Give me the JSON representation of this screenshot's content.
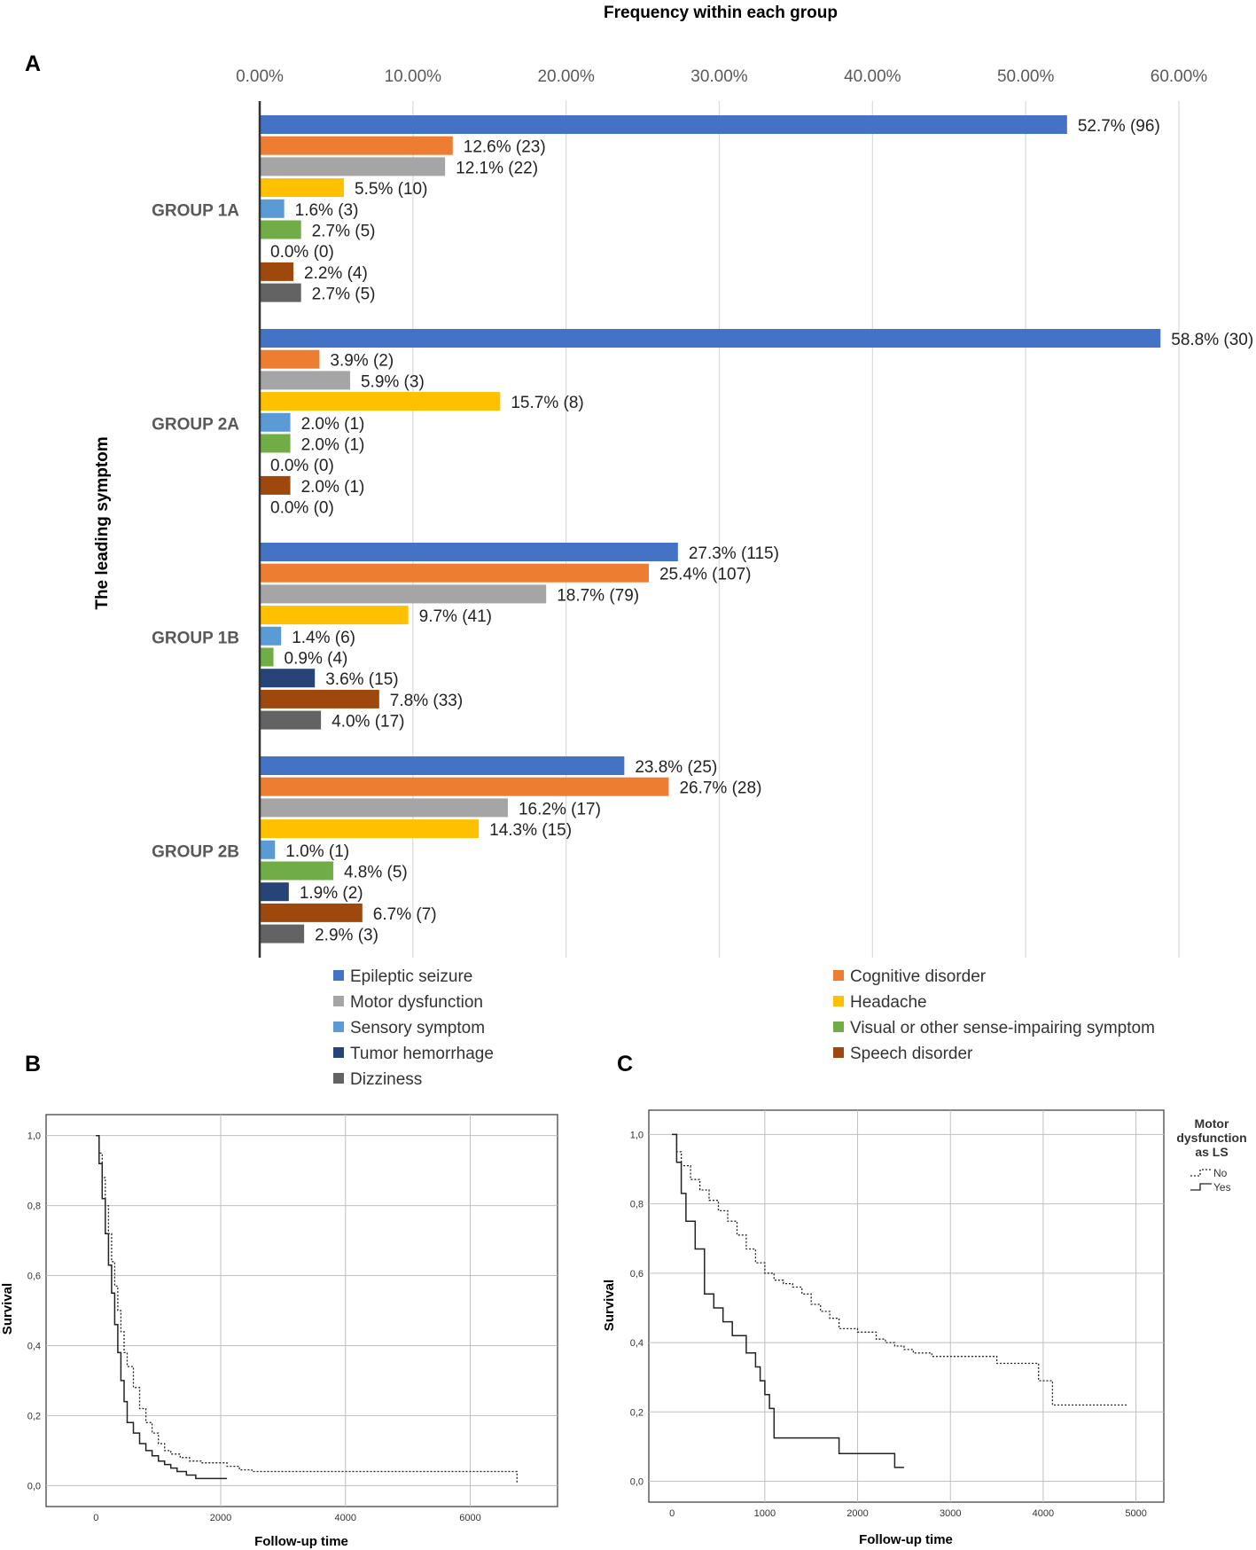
{
  "chart_data": [
    {
      "type": "bar",
      "orientation": "horizontal",
      "panel_label": "A",
      "title": "Frequency within each group",
      "ylabel": "The leading symptom",
      "xlim": [
        0,
        60
      ],
      "x_ticks": [
        "0.00%",
        "10.00%",
        "20.00%",
        "30.00%",
        "40.00%",
        "50.00%",
        "60.00%"
      ],
      "grid": true,
      "categories": [
        "GROUP 1A",
        "GROUP 2A",
        "GROUP 1B",
        "GROUP 2B"
      ],
      "series": [
        {
          "name": "Epileptic seizure",
          "color": "#4472C4",
          "values": [
            52.7,
            58.8,
            27.3,
            23.8
          ],
          "labels": [
            "52.7% (96)",
            "58.8% (30)",
            "27.3% (115)",
            "23.8% (25)"
          ]
        },
        {
          "name": "Cognitive disorder",
          "color": "#ED7D31",
          "values": [
            12.6,
            3.9,
            25.4,
            26.7
          ],
          "labels": [
            "12.6% (23)",
            "3.9% (2)",
            "25.4% (107)",
            "26.7% (28)"
          ]
        },
        {
          "name": "Motor dysfunction",
          "color": "#A5A5A5",
          "values": [
            12.1,
            5.9,
            18.7,
            16.2
          ],
          "labels": [
            "12.1% (22)",
            "5.9% (3)",
            "18.7% (79)",
            "16.2% (17)"
          ]
        },
        {
          "name": "Headache",
          "color": "#FFC000",
          "values": [
            5.5,
            15.7,
            9.7,
            14.3
          ],
          "labels": [
            "5.5% (10)",
            "15.7% (8)",
            "9.7% (41)",
            "14.3% (15)"
          ]
        },
        {
          "name": "Sensory symptom",
          "color": "#5B9BD5",
          "values": [
            1.6,
            2.0,
            1.4,
            1.0
          ],
          "labels": [
            "1.6% (3)",
            "2.0% (1)",
            "1.4% (6)",
            "1.0% (1)"
          ]
        },
        {
          "name": "Visual or other sense-impairing symptom",
          "color": "#70AD47",
          "values": [
            2.7,
            2.0,
            0.9,
            4.8
          ],
          "labels": [
            "2.7% (5)",
            "2.0% (1)",
            "0.9% (4)",
            "4.8% (5)"
          ]
        },
        {
          "name": "Tumor hemorrhage",
          "color": "#264478",
          "values": [
            0.0,
            0.0,
            3.6,
            1.9
          ],
          "labels": [
            "0.0% (0)",
            "0.0% (0)",
            "3.6% (15)",
            "1.9% (2)"
          ]
        },
        {
          "name": "Speech disorder",
          "color": "#9E480E",
          "values": [
            2.2,
            2.0,
            7.8,
            6.7
          ],
          "labels": [
            "2.2% (4)",
            "2.0% (1)",
            "7.8% (33)",
            "6.7% (7)"
          ]
        },
        {
          "name": "Dizziness",
          "color": "#636363",
          "values": [
            2.7,
            0.0,
            4.0,
            2.9
          ],
          "labels": [
            "2.7% (5)",
            "0.0% (0)",
            "4.0% (17)",
            "2.9% (3)"
          ]
        }
      ]
    },
    {
      "type": "line",
      "step": true,
      "panel_label": "B",
      "xlabel": "Follow-up time",
      "ylabel": "Survival",
      "xlim": [
        -800,
        7400
      ],
      "ylim": [
        -0.06,
        1.06
      ],
      "x_ticks": [
        "0",
        "2000",
        "4000",
        "6000"
      ],
      "y_ticks": [
        "0,0",
        "0,2",
        "0,4",
        "0,6",
        "0,8",
        "1,0"
      ],
      "series": [
        {
          "name": "dotted",
          "style": "dotted",
          "x": [
            0,
            50,
            100,
            150,
            200,
            250,
            300,
            350,
            400,
            450,
            500,
            600,
            700,
            800,
            900,
            1000,
            1100,
            1200,
            1350,
            1500,
            1700,
            2000,
            2100,
            2300,
            2500,
            3000,
            4000,
            5000,
            6000,
            6750,
            6750
          ],
          "y": [
            1.0,
            0.95,
            0.88,
            0.8,
            0.72,
            0.64,
            0.57,
            0.5,
            0.44,
            0.38,
            0.34,
            0.28,
            0.22,
            0.18,
            0.15,
            0.12,
            0.1,
            0.09,
            0.08,
            0.07,
            0.065,
            0.065,
            0.055,
            0.045,
            0.04,
            0.04,
            0.04,
            0.04,
            0.04,
            0.04,
            0.005
          ]
        },
        {
          "name": "solid",
          "style": "solid",
          "x": [
            0,
            50,
            100,
            150,
            200,
            250,
            300,
            350,
            400,
            450,
            500,
            600,
            700,
            800,
            900,
            1000,
            1100,
            1200,
            1300,
            1450,
            1600,
            2100
          ],
          "y": [
            1.0,
            0.92,
            0.82,
            0.72,
            0.63,
            0.55,
            0.46,
            0.38,
            0.3,
            0.24,
            0.18,
            0.15,
            0.12,
            0.1,
            0.085,
            0.07,
            0.06,
            0.05,
            0.04,
            0.03,
            0.02,
            0.02
          ]
        }
      ]
    },
    {
      "type": "line",
      "step": true,
      "panel_label": "C",
      "xlabel": "Follow-up time",
      "ylabel": "Survival",
      "xlim": [
        -250,
        5300
      ],
      "ylim": [
        -0.06,
        1.07
      ],
      "x_ticks": [
        "0",
        "1000",
        "2000",
        "3000",
        "4000",
        "5000"
      ],
      "y_ticks": [
        "0,0",
        "0,2",
        "0,4",
        "0,6",
        "0,8",
        "1,0"
      ],
      "legend_title": [
        "Motor",
        "dysfunction",
        "as LS"
      ],
      "legend_entries": [
        "No",
        "Yes"
      ],
      "series": [
        {
          "name": "No",
          "style": "dotted",
          "x": [
            0,
            50,
            100,
            200,
            300,
            400,
            500,
            600,
            700,
            800,
            900,
            1000,
            1100,
            1200,
            1300,
            1400,
            1500,
            1600,
            1700,
            1800,
            1900,
            2000,
            2200,
            2300,
            2400,
            2500,
            2600,
            2800,
            3000,
            3200,
            3500,
            3800,
            3950,
            4000,
            4100,
            4300,
            4900
          ],
          "y": [
            1.0,
            0.95,
            0.91,
            0.87,
            0.84,
            0.81,
            0.78,
            0.75,
            0.71,
            0.67,
            0.63,
            0.6,
            0.58,
            0.57,
            0.56,
            0.54,
            0.51,
            0.49,
            0.47,
            0.44,
            0.44,
            0.43,
            0.41,
            0.4,
            0.39,
            0.38,
            0.37,
            0.36,
            0.36,
            0.36,
            0.34,
            0.34,
            0.29,
            0.29,
            0.22,
            0.22,
            0.22
          ]
        },
        {
          "name": "Yes",
          "style": "solid",
          "x": [
            0,
            50,
            100,
            150,
            250,
            350,
            450,
            550,
            650,
            800,
            900,
            950,
            1000,
            1050,
            1100,
            1800,
            2400,
            2500
          ],
          "y": [
            1.0,
            0.92,
            0.83,
            0.75,
            0.67,
            0.54,
            0.5,
            0.46,
            0.42,
            0.37,
            0.33,
            0.29,
            0.25,
            0.21,
            0.125,
            0.08,
            0.04,
            0.04
          ]
        }
      ]
    }
  ]
}
